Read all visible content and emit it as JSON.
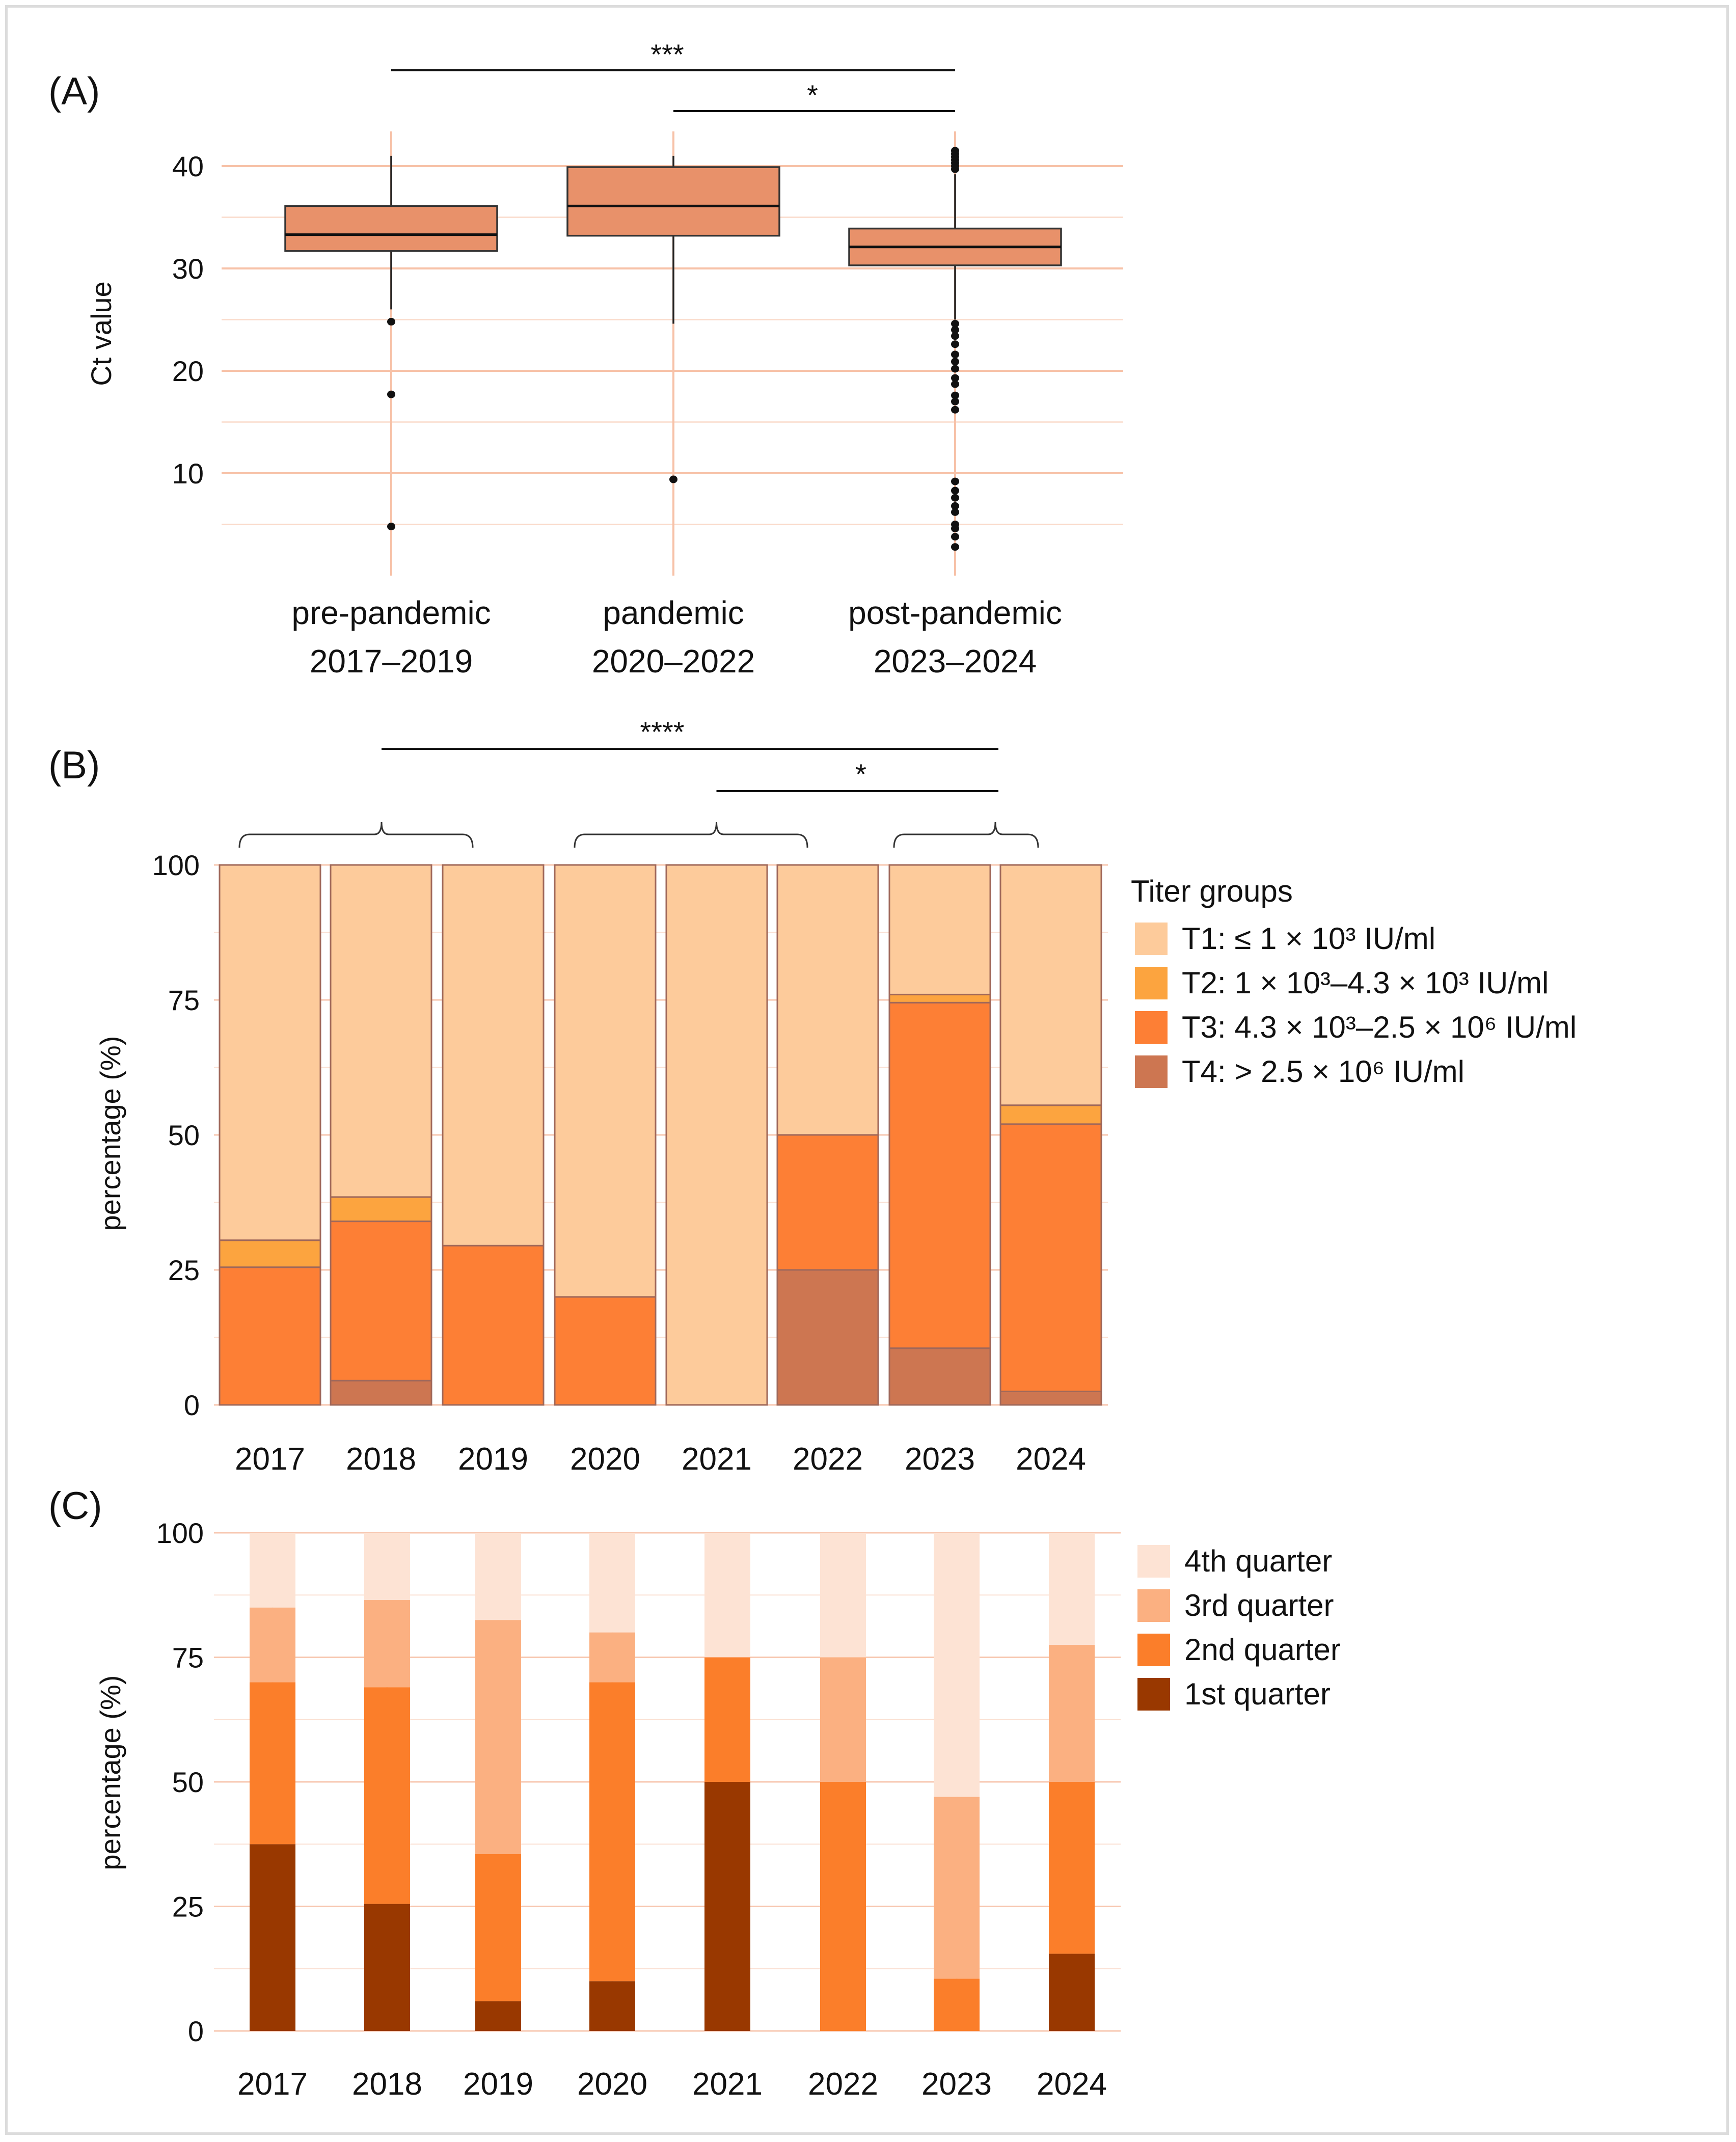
{
  "colors": {
    "grid": "#f7c2a8",
    "box_fill": "#e8916a",
    "T1": "#fdcb9b",
    "T2": "#fca43f",
    "T3": "#fd7f35",
    "T4": "#cd7651",
    "Q4": "#fde3d4",
    "Q3": "#fbb081",
    "Q2": "#fb7e2a",
    "Q1": "#993800"
  },
  "chart_data": [
    {
      "panel_label": "(A)",
      "type": "box",
      "ylabel": "Ct value",
      "xlabel": "",
      "ylim": [
        0,
        44
      ],
      "yticks": [
        10,
        20,
        30,
        40
      ],
      "grid": true,
      "categories": [
        "pre-pandemic\n2017–2019",
        "pandemic\n2020–2022",
        "post-pandemic\n2023–2024"
      ],
      "boxes": [
        {
          "q1": 31.7,
          "median": 33.3,
          "q3": 36.1,
          "whisker_low": 26.0,
          "whisker_high": 41.0,
          "outliers": [
            24.8,
            17.7,
            4.8
          ]
        },
        {
          "q1": 33.2,
          "median": 36.1,
          "q3": 39.9,
          "whisker_low": 24.6,
          "whisker_high": 41.0,
          "outliers": [
            9.4
          ]
        },
        {
          "q1": 30.3,
          "median": 32.1,
          "q3": 33.9,
          "whisker_low": 25.0,
          "whisker_high": 39.2,
          "outliers": [
            41.5,
            41.2,
            40.9,
            40.6,
            40.3,
            40.0,
            39.7,
            24.6,
            24.0,
            23.4,
            22.6,
            21.6,
            20.9,
            20.2,
            19.3,
            18.7,
            17.6,
            17.0,
            16.2,
            9.2,
            8.3,
            7.6,
            6.8,
            6.2,
            5.0,
            4.6,
            3.8,
            2.8
          ]
        }
      ],
      "significance": [
        {
          "from": 0,
          "to": 2,
          "label": "***"
        },
        {
          "from": 1,
          "to": 2,
          "label": "*"
        }
      ]
    },
    {
      "panel_label": "(B)",
      "type": "stacked_bar",
      "ylabel": "percentage (%)",
      "xlabel": "",
      "ylim": [
        0,
        100
      ],
      "yticks": [
        0,
        25,
        50,
        75,
        100
      ],
      "grid": true,
      "categories": [
        "2017",
        "2018",
        "2019",
        "2020",
        "2021",
        "2022",
        "2023",
        "2024"
      ],
      "legend_title": "Titer groups",
      "legend_position": "right",
      "series": [
        {
          "name": "T4: > 2.5 × 10⁶ IU/ml",
          "color_key": "T4",
          "values": [
            0,
            4.5,
            0,
            0,
            0,
            25,
            10.5,
            2.5
          ]
        },
        {
          "name": "T3: 4.3 × 10³–2.5 × 10⁶ IU/ml",
          "color_key": "T3",
          "values": [
            25.5,
            29.5,
            29.5,
            20,
            0,
            25,
            64,
            49.5
          ]
        },
        {
          "name": "T2: 1 × 10³–4.3 × 10³ IU/ml",
          "color_key": "T2",
          "values": [
            5,
            4.5,
            0,
            0,
            0,
            0,
            1.5,
            3.5
          ]
        },
        {
          "name": "T1: ≤ 1 × 10³ IU/ml",
          "color_key": "T1",
          "values": [
            69.5,
            61.5,
            70.5,
            80,
            100,
            50,
            24,
            44.5
          ]
        }
      ],
      "legend_order": [
        3,
        2,
        1,
        0
      ],
      "brackets": [
        {
          "from": 0,
          "to": 2
        },
        {
          "from": 3,
          "to": 5
        },
        {
          "from": 6,
          "to": 7
        }
      ],
      "significance": [
        {
          "from_group": 0,
          "to_group": 2,
          "label": "****"
        },
        {
          "from_group": 1,
          "to_group": 2,
          "label": "*"
        }
      ]
    },
    {
      "panel_label": "(C)",
      "type": "stacked_bar",
      "ylabel": "percentage (%)",
      "xlabel": "",
      "ylim": [
        0,
        100
      ],
      "yticks": [
        0,
        25,
        50,
        75,
        100
      ],
      "grid": true,
      "categories": [
        "2017",
        "2018",
        "2019",
        "2020",
        "2021",
        "2022",
        "2023",
        "2024"
      ],
      "legend_title": "",
      "legend_position": "right",
      "series": [
        {
          "name": "1st quarter",
          "color_key": "Q1",
          "values": [
            37.5,
            25.5,
            6,
            10,
            50,
            0,
            0,
            15.5
          ]
        },
        {
          "name": "2nd quarter",
          "color_key": "Q2",
          "values": [
            32.5,
            43.5,
            29.5,
            60,
            25,
            50,
            10.5,
            34.5
          ]
        },
        {
          "name": "3rd quarter",
          "color_key": "Q3",
          "values": [
            15,
            17.5,
            47,
            10,
            0,
            25,
            36.5,
            27.5
          ]
        },
        {
          "name": "4th quarter",
          "color_key": "Q4",
          "values": [
            15,
            13.5,
            17.5,
            20,
            25,
            25,
            53,
            22.5
          ]
        }
      ],
      "legend_order": [
        3,
        2,
        1,
        0
      ]
    }
  ]
}
